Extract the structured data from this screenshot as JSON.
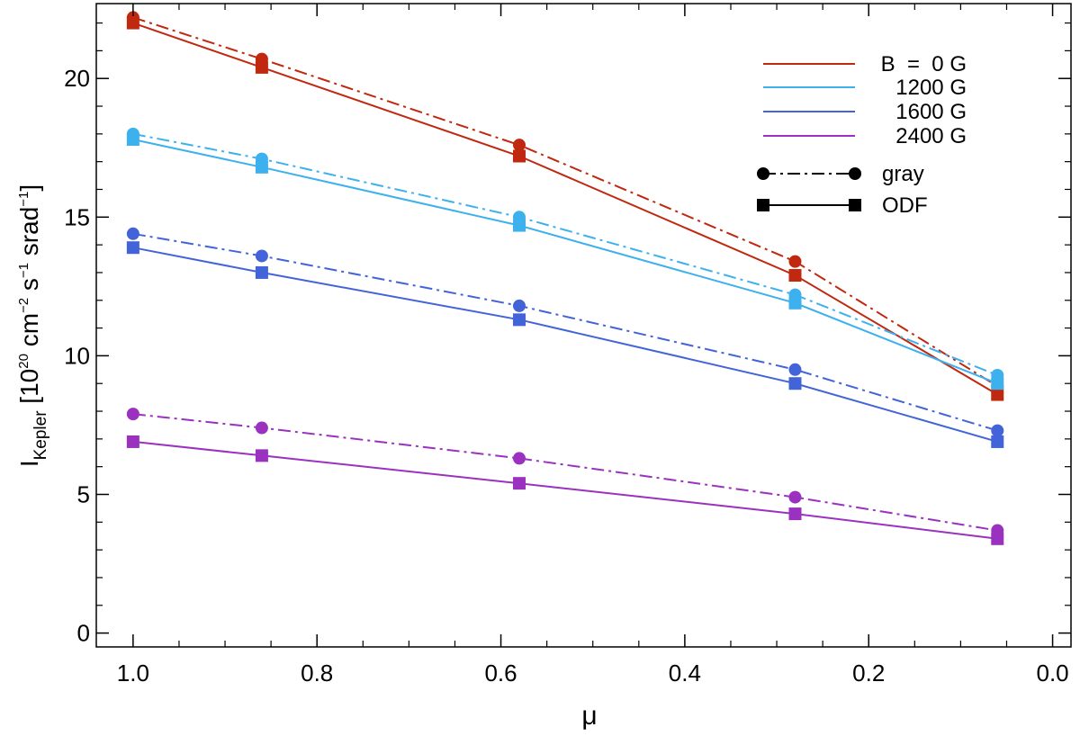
{
  "chart_data": {
    "type": "line",
    "xlabel": "μ",
    "ylabel": {
      "main": "I",
      "subscript": "Kepler",
      "unit_open": " [10",
      "unit_exp1": "20",
      "unit_cm": " cm",
      "unit_exp2": "−2",
      "unit_s": " s",
      "unit_exp3": "−1",
      "unit_srad": " srad",
      "unit_exp4": "−1",
      "unit_close": "]"
    },
    "xlim": [
      1.04,
      -0.02
    ],
    "ylim": [
      -0.5,
      22.7
    ],
    "x_ticks": [
      1.0,
      0.8,
      0.6,
      0.4,
      0.2,
      0.0
    ],
    "x_tick_labels": [
      "1.0",
      "0.8",
      "0.6",
      "0.4",
      "0.2",
      "0.0"
    ],
    "y_ticks": [
      0,
      5,
      10,
      15,
      20
    ],
    "y_tick_labels": [
      "0",
      "5",
      "10",
      "15",
      "20"
    ],
    "grid": false,
    "legend_position": "top-right",
    "x": [
      1.0,
      0.86,
      0.58,
      0.28,
      0.06
    ],
    "series": [
      {
        "field": "B = 0 G",
        "color": "#c0280f",
        "method": "gray",
        "values": [
          22.2,
          20.7,
          17.6,
          13.4,
          8.9
        ]
      },
      {
        "field": "B = 0 G",
        "color": "#c0280f",
        "method": "ODF",
        "values": [
          22.0,
          20.4,
          17.2,
          12.9,
          8.6
        ]
      },
      {
        "field": "1200 G",
        "color": "#3db0ee",
        "method": "gray",
        "values": [
          18.0,
          17.1,
          15.0,
          12.2,
          9.3
        ]
      },
      {
        "field": "1200 G",
        "color": "#3db0ee",
        "method": "ODF",
        "values": [
          17.8,
          16.8,
          14.7,
          11.9,
          9.0
        ]
      },
      {
        "field": "1600 G",
        "color": "#4264d8",
        "method": "gray",
        "values": [
          14.4,
          13.6,
          11.8,
          9.5,
          7.3
        ]
      },
      {
        "field": "1600 G",
        "color": "#4264d8",
        "method": "ODF",
        "values": [
          13.9,
          13.0,
          11.3,
          9.0,
          6.9
        ]
      },
      {
        "field": "2400 G",
        "color": "#9a32bf",
        "method": "gray",
        "values": [
          7.9,
          7.4,
          6.3,
          4.9,
          3.7
        ]
      },
      {
        "field": "2400 G",
        "color": "#9a32bf",
        "method": "ODF",
        "values": [
          6.9,
          6.4,
          5.4,
          4.3,
          3.4
        ]
      }
    ],
    "legend": {
      "fields": [
        {
          "label": "B  =  0 G",
          "color": "#c0280f"
        },
        {
          "label": "1200 G",
          "color": "#3db0ee"
        },
        {
          "label": "1600 G",
          "color": "#4264d8"
        },
        {
          "label": "2400 G",
          "color": "#9a32bf"
        }
      ],
      "methods": [
        {
          "label": "gray",
          "marker": "circle",
          "dash": "dash-dot"
        },
        {
          "label": "ODF",
          "marker": "square",
          "dash": "solid"
        }
      ]
    }
  }
}
